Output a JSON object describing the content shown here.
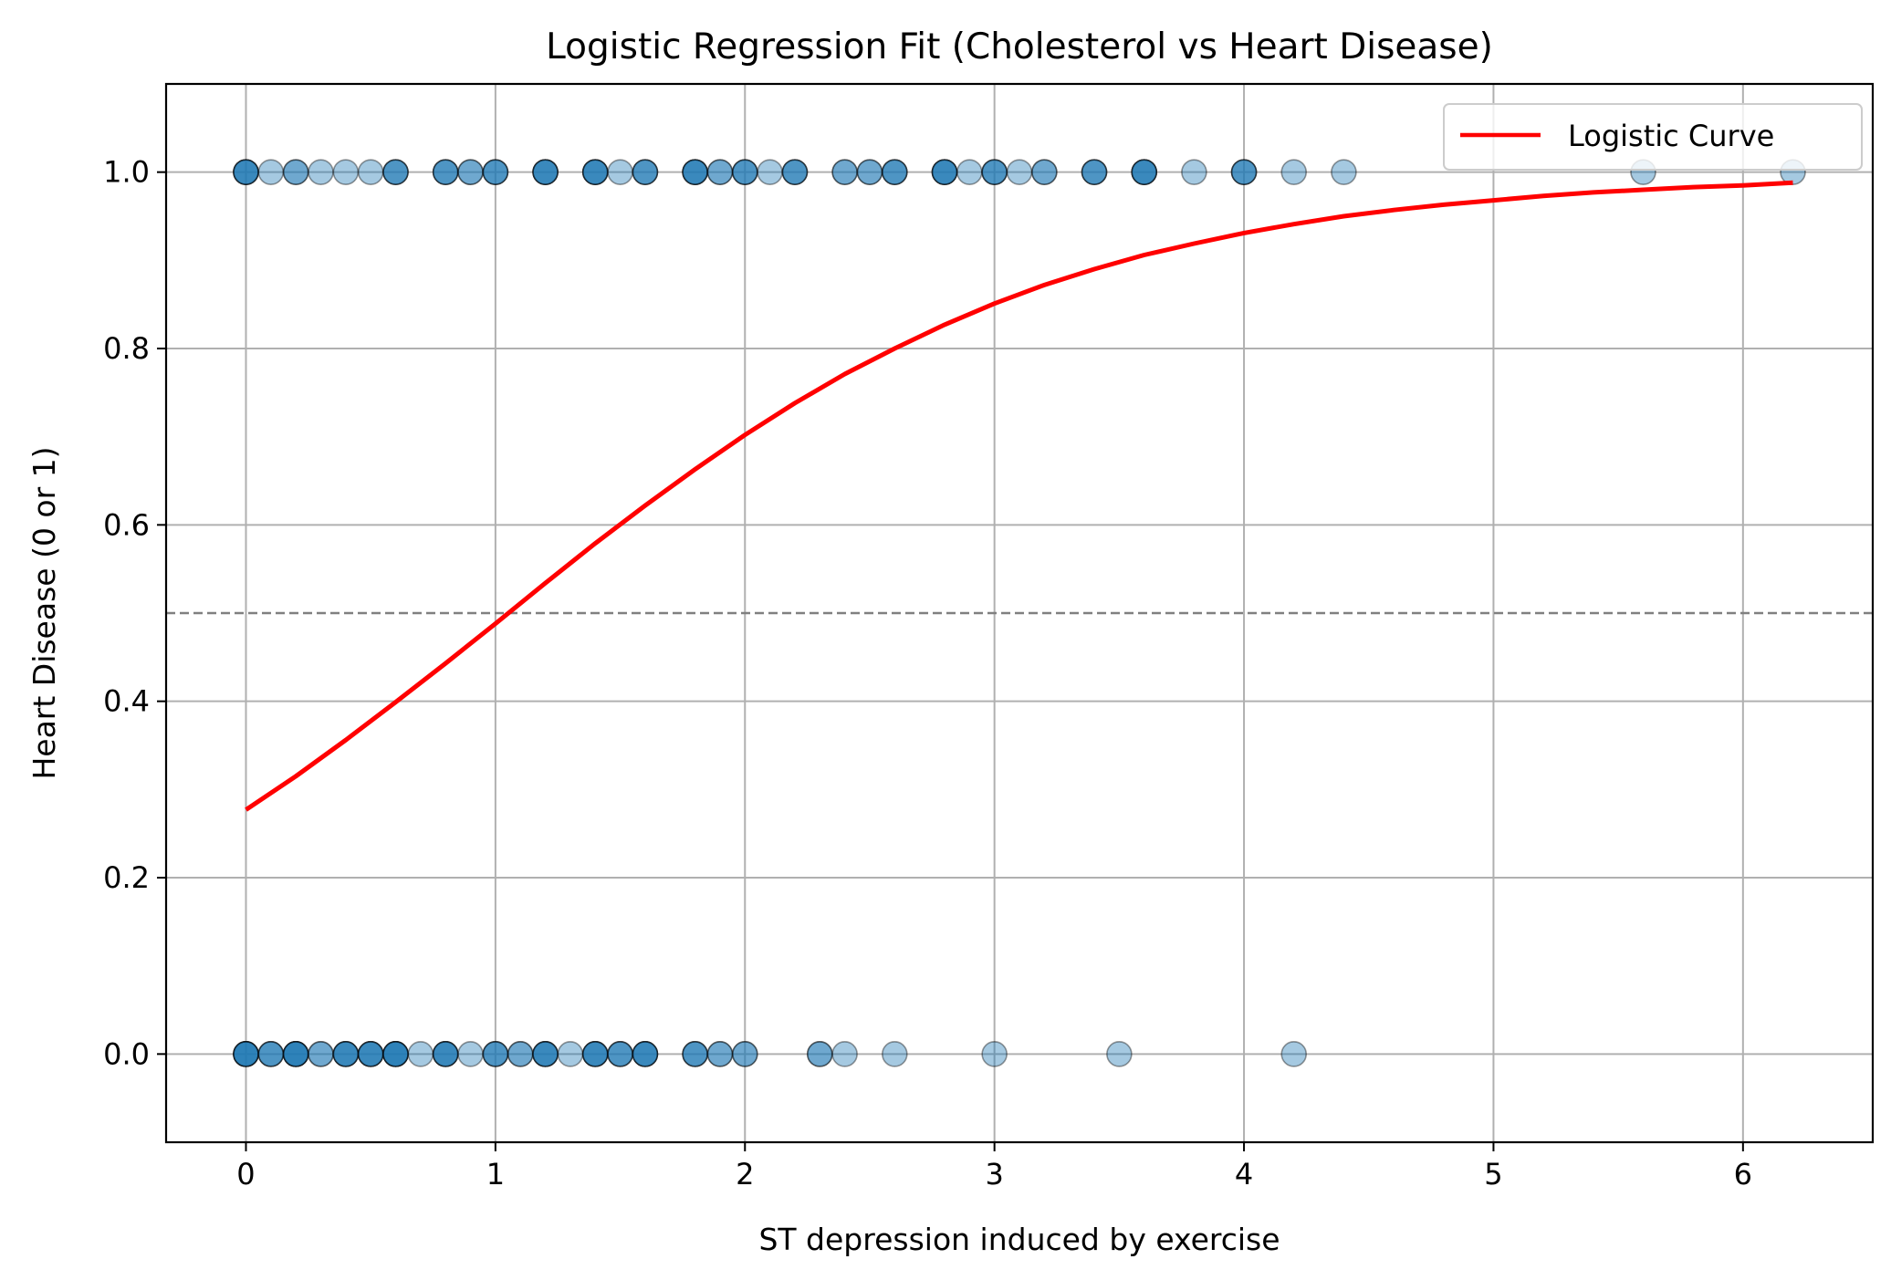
{
  "chart_data": {
    "type": "scatter",
    "title": "Logistic Regression Fit (Cholesterol vs Heart Disease)",
    "xlabel": "ST depression induced by exercise",
    "ylabel": "Heart Disease (0 or 1)",
    "xlim": [
      -0.32,
      6.52
    ],
    "ylim": [
      -0.1,
      1.1
    ],
    "xticks": [
      0,
      1,
      2,
      3,
      4,
      5,
      6
    ],
    "yticks": [
      0.0,
      0.2,
      0.4,
      0.6,
      0.8,
      1.0
    ],
    "xtick_labels": [
      "0",
      "1",
      "2",
      "3",
      "4",
      "5",
      "6"
    ],
    "ytick_labels": [
      "0.0",
      "0.2",
      "0.4",
      "0.6",
      "0.8",
      "1.0"
    ],
    "grid": true,
    "legend": {
      "location": "top-right",
      "entries": [
        "Logistic Curve"
      ]
    },
    "threshold_line": {
      "y": 0.5,
      "style": "dashed",
      "color": "#808080"
    },
    "colors": {
      "points": "#1f77b4",
      "point_edge": "#000000",
      "curve": "#ff0000",
      "grid": "#b0b0b0"
    },
    "scatter": {
      "alpha": 0.4,
      "points": [
        {
          "x": 0.0,
          "y": 1,
          "n": 4
        },
        {
          "x": 0.1,
          "y": 1,
          "n": 1
        },
        {
          "x": 0.2,
          "y": 1,
          "n": 2
        },
        {
          "x": 0.3,
          "y": 1,
          "n": 1
        },
        {
          "x": 0.4,
          "y": 1,
          "n": 1
        },
        {
          "x": 0.5,
          "y": 1,
          "n": 1
        },
        {
          "x": 0.6,
          "y": 1,
          "n": 3
        },
        {
          "x": 0.8,
          "y": 1,
          "n": 3
        },
        {
          "x": 0.9,
          "y": 1,
          "n": 2
        },
        {
          "x": 1.0,
          "y": 1,
          "n": 3
        },
        {
          "x": 1.2,
          "y": 1,
          "n": 4
        },
        {
          "x": 1.4,
          "y": 1,
          "n": 4
        },
        {
          "x": 1.5,
          "y": 1,
          "n": 1
        },
        {
          "x": 1.6,
          "y": 1,
          "n": 3
        },
        {
          "x": 1.8,
          "y": 1,
          "n": 4
        },
        {
          "x": 1.9,
          "y": 1,
          "n": 2
        },
        {
          "x": 2.0,
          "y": 1,
          "n": 3
        },
        {
          "x": 2.1,
          "y": 1,
          "n": 1
        },
        {
          "x": 2.2,
          "y": 1,
          "n": 3
        },
        {
          "x": 2.4,
          "y": 1,
          "n": 2
        },
        {
          "x": 2.5,
          "y": 1,
          "n": 2
        },
        {
          "x": 2.6,
          "y": 1,
          "n": 3
        },
        {
          "x": 2.8,
          "y": 1,
          "n": 4
        },
        {
          "x": 2.9,
          "y": 1,
          "n": 1
        },
        {
          "x": 3.0,
          "y": 1,
          "n": 3
        },
        {
          "x": 3.1,
          "y": 1,
          "n": 1
        },
        {
          "x": 3.2,
          "y": 1,
          "n": 2
        },
        {
          "x": 3.4,
          "y": 1,
          "n": 3
        },
        {
          "x": 3.6,
          "y": 1,
          "n": 4
        },
        {
          "x": 3.8,
          "y": 1,
          "n": 1
        },
        {
          "x": 4.0,
          "y": 1,
          "n": 3
        },
        {
          "x": 4.2,
          "y": 1,
          "n": 1
        },
        {
          "x": 4.4,
          "y": 1,
          "n": 1
        },
        {
          "x": 5.6,
          "y": 1,
          "n": 1
        },
        {
          "x": 6.2,
          "y": 1,
          "n": 1
        },
        {
          "x": 0.0,
          "y": 0,
          "n": 5
        },
        {
          "x": 0.1,
          "y": 0,
          "n": 3
        },
        {
          "x": 0.2,
          "y": 0,
          "n": 5
        },
        {
          "x": 0.3,
          "y": 0,
          "n": 2
        },
        {
          "x": 0.4,
          "y": 0,
          "n": 4
        },
        {
          "x": 0.5,
          "y": 0,
          "n": 4
        },
        {
          "x": 0.6,
          "y": 0,
          "n": 5
        },
        {
          "x": 0.7,
          "y": 0,
          "n": 1
        },
        {
          "x": 0.8,
          "y": 0,
          "n": 4
        },
        {
          "x": 0.9,
          "y": 0,
          "n": 1
        },
        {
          "x": 1.0,
          "y": 0,
          "n": 3
        },
        {
          "x": 1.1,
          "y": 0,
          "n": 2
        },
        {
          "x": 1.2,
          "y": 0,
          "n": 4
        },
        {
          "x": 1.3,
          "y": 0,
          "n": 1
        },
        {
          "x": 1.4,
          "y": 0,
          "n": 4
        },
        {
          "x": 1.5,
          "y": 0,
          "n": 3
        },
        {
          "x": 1.6,
          "y": 0,
          "n": 4
        },
        {
          "x": 1.8,
          "y": 0,
          "n": 3
        },
        {
          "x": 1.9,
          "y": 0,
          "n": 2
        },
        {
          "x": 2.0,
          "y": 0,
          "n": 2
        },
        {
          "x": 2.3,
          "y": 0,
          "n": 2
        },
        {
          "x": 2.4,
          "y": 0,
          "n": 1
        },
        {
          "x": 2.6,
          "y": 0,
          "n": 1
        },
        {
          "x": 3.0,
          "y": 0,
          "n": 1
        },
        {
          "x": 3.5,
          "y": 0,
          "n": 1
        },
        {
          "x": 4.2,
          "y": 0,
          "n": 1
        }
      ]
    },
    "curve": {
      "name": "Logistic Curve",
      "type": "line",
      "x": [
        0.0,
        0.2,
        0.4,
        0.6,
        0.8,
        1.0,
        1.2,
        1.4,
        1.6,
        1.8,
        2.0,
        2.2,
        2.4,
        2.6,
        2.8,
        3.0,
        3.2,
        3.4,
        3.6,
        3.8,
        4.0,
        4.2,
        4.4,
        4.6,
        4.8,
        5.0,
        5.2,
        5.4,
        5.6,
        5.8,
        6.0,
        6.2
      ],
      "y": [
        0.277,
        0.315,
        0.356,
        0.399,
        0.443,
        0.488,
        0.534,
        0.579,
        0.622,
        0.663,
        0.702,
        0.738,
        0.771,
        0.8,
        0.827,
        0.851,
        0.872,
        0.89,
        0.906,
        0.919,
        0.931,
        0.941,
        0.95,
        0.957,
        0.963,
        0.968,
        0.973,
        0.977,
        0.98,
        0.983,
        0.985,
        0.988
      ]
    }
  }
}
